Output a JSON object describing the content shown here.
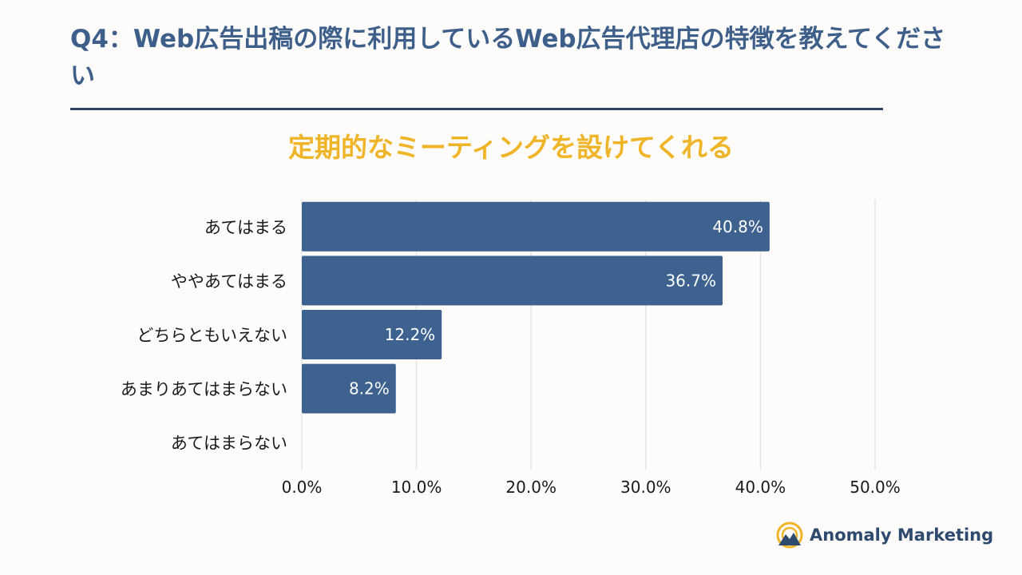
{
  "question": "Q4：Web広告出稿の際に利用しているWeb広告代理店の特徴を教えてください",
  "brand": {
    "name": "Anomaly Marketing",
    "icon": "mountain-logo-icon"
  },
  "colors": {
    "bar": "#3e6290",
    "title": "#3e5f8a",
    "subtitle": "#f0b428",
    "grid": "#e4e4e4"
  },
  "chart_data": {
    "type": "bar",
    "orientation": "horizontal",
    "title": "定期的なミーティングを設けてくれる",
    "categories": [
      "あてはまる",
      "ややあてはまる",
      "どちらともいえない",
      "あまりあてはまらない",
      "あてはまらない"
    ],
    "values": [
      40.8,
      36.7,
      12.2,
      8.2,
      0
    ],
    "value_labels": [
      "40.8%",
      "36.7%",
      "12.2%",
      "8.2%",
      ""
    ],
    "xlim": [
      0,
      50
    ],
    "xticks": [
      0,
      10,
      20,
      30,
      40,
      50
    ],
    "xtick_labels": [
      "0.0%",
      "10.0%",
      "20.0%",
      "30.0%",
      "40.0%",
      "50.0%"
    ],
    "grid": "vertical",
    "legend": "none"
  }
}
